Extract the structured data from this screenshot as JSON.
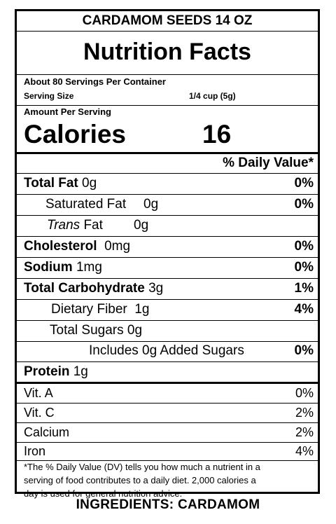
{
  "product_name": "CARDAMOM SEEDS 14 OZ",
  "panel_title": "Nutrition Facts",
  "servings_per_container": "About 80 Servings Per Container",
  "serving_size_label": "Serving Size",
  "serving_size_value": "1/4 cup (5g)",
  "amount_per_serving": "Amount Per Serving",
  "calories_label": "Calories",
  "calories_value": "16",
  "daily_value_header": "% Daily Value*",
  "nutrients": {
    "total_fat": {
      "label": "Total Fat",
      "amount": "0g",
      "dv": "0%"
    },
    "saturated_fat": {
      "label": "Saturated Fat",
      "amount": "0g",
      "dv": "0%"
    },
    "trans_fat": {
      "label_italic": "Trans",
      "label_rest": " Fat",
      "amount": "0g"
    },
    "cholesterol": {
      "label": "Cholesterol",
      "amount": "0mg",
      "dv": "0%"
    },
    "sodium": {
      "label": "Sodium",
      "amount": "1mg",
      "dv": "0%"
    },
    "total_carbohydrate": {
      "label": "Total Carbohydrate",
      "amount": "3g",
      "dv": "1%"
    },
    "dietary_fiber": {
      "label": "Dietary Fiber",
      "amount": "1g",
      "dv": "4%"
    },
    "total_sugars": {
      "label": "Total Sugars",
      "amount": "0g"
    },
    "added_sugars": {
      "label": "Includes 0g Added Sugars",
      "dv": "0%"
    },
    "protein": {
      "label": "Protein",
      "amount": "1g"
    }
  },
  "vitamins": [
    {
      "label": "Vit. A",
      "dv": "0%"
    },
    {
      "label": "Vit. C",
      "dv": "2%"
    },
    {
      "label": "Calcium",
      "dv": "2%"
    },
    {
      "label": "Iron",
      "dv": "4%"
    }
  ],
  "footnote": {
    "line1": "*The % Daily Value (DV) tells you how much a nutrient in a",
    "line2": "serving of food contributes to a daily diet. 2,000 calories a",
    "line3": "day is used for general nutrition advice."
  },
  "ingredients": "INGREDIENTS: CARDAMOM"
}
